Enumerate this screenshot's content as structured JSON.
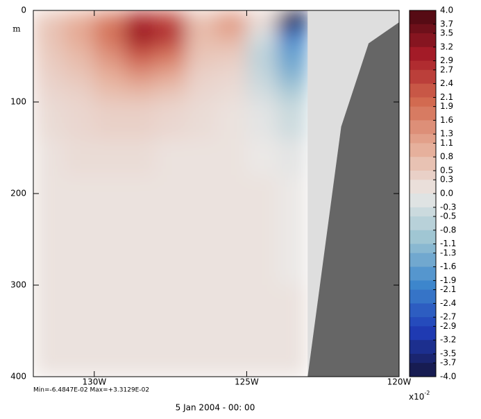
{
  "chart_data": {
    "type": "heatmap",
    "xlim": [
      -132,
      -120
    ],
    "xticks": [
      {
        "value": -130,
        "label": "130W"
      },
      {
        "value": -125,
        "label": "125W"
      },
      {
        "value": -120,
        "label": "120W"
      }
    ],
    "ylim": [
      0,
      400
    ],
    "y_reversed": true,
    "ylabel": "m",
    "yticks": [
      0,
      100,
      200,
      300,
      400
    ],
    "field": {
      "lon_edges": [
        -132,
        -131,
        -130,
        -129,
        -128,
        -127,
        -126,
        -125,
        -124,
        -123
      ],
      "depth_edges": [
        0,
        10,
        20,
        30,
        40,
        60,
        80,
        100,
        140,
        180,
        300,
        400
      ],
      "values": [
        [
          0.5,
          0.9,
          1.5,
          2.6,
          2.2,
          0.6,
          1.2,
          0.3,
          -5.5
        ],
        [
          0.6,
          1.0,
          1.8,
          3.0,
          2.6,
          0.7,
          1.3,
          0.2,
          -4.0
        ],
        [
          0.6,
          1.1,
          1.9,
          3.2,
          2.8,
          0.8,
          1.1,
          -0.2,
          -2.4
        ],
        [
          0.6,
          1.0,
          1.8,
          3.0,
          2.5,
          0.7,
          0.8,
          -0.4,
          -1.8
        ],
        [
          0.5,
          0.8,
          1.4,
          2.2,
          1.8,
          0.6,
          0.5,
          -0.6,
          -1.6
        ],
        [
          0.4,
          0.6,
          1.0,
          1.4,
          1.1,
          0.4,
          0.3,
          -0.5,
          -1.3
        ],
        [
          0.3,
          0.4,
          0.7,
          0.8,
          0.6,
          0.3,
          0.2,
          -0.3,
          -0.8
        ],
        [
          0.2,
          0.3,
          0.4,
          0.4,
          0.3,
          0.2,
          0.1,
          -0.1,
          -0.4
        ],
        [
          0.1,
          0.2,
          0.2,
          0.2,
          0.1,
          0.1,
          0.1,
          0.0,
          -0.1
        ],
        [
          0.1,
          0.1,
          0.1,
          0.1,
          0.1,
          0.1,
          0.1,
          0.1,
          0.0
        ],
        [
          0.1,
          0.1,
          0.1,
          0.1,
          0.1,
          0.1,
          0.1,
          0.1,
          0.1
        ]
      ]
    },
    "bathymetry": {
      "lon": [
        -123,
        -121.9,
        -121,
        -120
      ],
      "depth": [
        400,
        127,
        36,
        13
      ],
      "color": "#666666"
    },
    "mask_color": "#dedede",
    "colormap": [
      [
        -4,
        "#161640"
      ],
      [
        -3,
        "#1f3cb8"
      ],
      [
        -2,
        "#3d86cc"
      ],
      [
        -1,
        "#9cc4d2"
      ],
      [
        0,
        "#ebe8e6"
      ],
      [
        1,
        "#e6ad98"
      ],
      [
        2,
        "#d26a50"
      ],
      [
        3,
        "#a81c28"
      ],
      [
        4,
        "#480810"
      ]
    ],
    "colorbar_ticks": [
      {
        "value": 4,
        "label": "4.0"
      },
      3.7,
      3.5,
      3.2,
      2.9,
      2.7,
      2.4,
      2.1,
      1.9,
      1.6,
      1.3,
      1.1,
      0.8,
      0.5,
      0.3,
      {
        "value": 0,
        "label": "0.0"
      },
      -0.3,
      -0.5,
      -0.8,
      -1.1,
      -1.3,
      -1.6,
      -1.9,
      -2.1,
      -2.4,
      -2.7,
      -2.9,
      -3.2,
      -3.5,
      -3.7,
      {
        "value": -4,
        "label": "-4.0"
      }
    ],
    "colorbar_label": "x10",
    "colorbar_exponent": "-2",
    "stats": "Min=-6.4847E-02   Max=+3.3129E-02",
    "footer": "5 Jan 2004 - 00: 00"
  }
}
